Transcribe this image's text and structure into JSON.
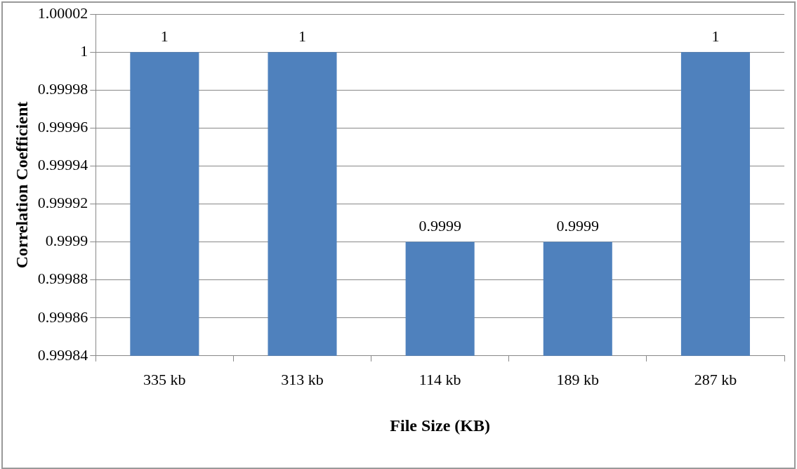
{
  "chart_data": {
    "type": "bar",
    "xlabel": "File Size (KB)",
    "ylabel": "Correlation Coefficient",
    "categories": [
      "335 kb",
      "313 kb",
      "114 kb",
      "189 kb",
      "287 kb"
    ],
    "values": [
      1,
      1,
      0.9999,
      0.9999,
      1
    ],
    "color": "#4f81bd",
    "ylim": [
      0.99984,
      1.00002
    ],
    "yticks": [
      0.99984,
      0.99986,
      0.99988,
      0.9999,
      0.99992,
      0.99994,
      0.99996,
      0.99998,
      1,
      1.00002
    ],
    "grid": "y",
    "data_labels": true,
    "legend": false
  }
}
